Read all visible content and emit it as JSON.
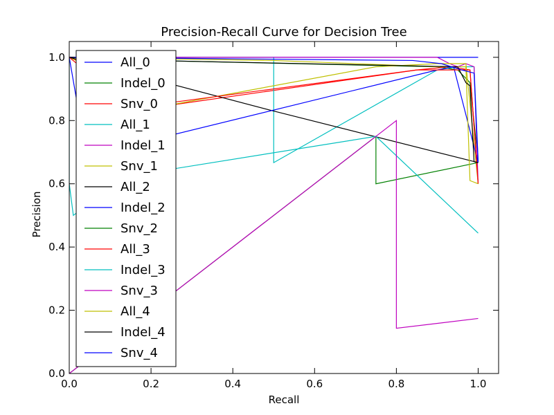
{
  "chart_data": {
    "type": "line",
    "title": "Precision-Recall Curve for Decision Tree",
    "xlabel": "Recall",
    "ylabel": "Precision",
    "xlim": [
      0.0,
      1.05
    ],
    "ylim": [
      0.0,
      1.05
    ],
    "xticks": [
      "0.0",
      "0.2",
      "0.4",
      "0.6",
      "0.8",
      "1.0"
    ],
    "yticks": [
      "0.0",
      "0.2",
      "0.4",
      "0.6",
      "0.8",
      "1.0"
    ],
    "legend_position": "left",
    "series": [
      {
        "name": "All_0",
        "color": "#0000ff",
        "x": [
          0.0,
          0.0,
          0.9,
          0.92,
          1.0
        ],
        "y": [
          1.0,
          1.0,
          1.0,
          1.0,
          1.0
        ]
      },
      {
        "name": "Indel_0",
        "color": "#008000",
        "x": [
          0.0,
          0.0,
          0.2,
          0.9,
          0.95,
          0.98,
          1.0
        ],
        "y": [
          1.0,
          1.0,
          0.99,
          0.97,
          0.96,
          0.92,
          0.67
        ]
      },
      {
        "name": "Snv_0",
        "color": "#ff0000",
        "x": [
          0.0,
          0.02,
          0.2,
          0.85,
          0.93,
          0.98,
          1.0
        ],
        "y": [
          1.0,
          0.99,
          0.84,
          0.96,
          0.97,
          0.96,
          0.6
        ]
      },
      {
        "name": "All_1",
        "color": "#00bfbf",
        "x": [
          0.0,
          0.0,
          0.5,
          0.5,
          0.9,
          0.95,
          0.99,
          1.0
        ],
        "y": [
          1.0,
          1.0,
          1.0,
          0.667,
          0.96,
          0.97,
          0.97,
          0.67
        ]
      },
      {
        "name": "Indel_1",
        "color": "#bf00bf",
        "x": [
          0.0,
          0.0,
          0.9,
          0.93,
          0.95,
          0.97,
          0.99,
          1.0
        ],
        "y": [
          1.0,
          1.0,
          1.0,
          0.98,
          0.97,
          0.98,
          0.97,
          0.6
        ]
      },
      {
        "name": "Snv_1",
        "color": "#bfbf00",
        "x": [
          0.0,
          0.0,
          0.25,
          0.75,
          0.9,
          0.97,
          1.0
        ],
        "y": [
          1.0,
          1.0,
          0.85,
          0.97,
          0.98,
          0.98,
          0.6
        ]
      },
      {
        "name": "All_2",
        "color": "#000000",
        "x": [
          0.0,
          0.0,
          0.5,
          1.0
        ],
        "y": [
          1.0,
          1.0,
          0.83,
          0.667
        ]
      },
      {
        "name": "Indel_2",
        "color": "#0000ff",
        "x": [
          0.0,
          0.02,
          0.08,
          0.9,
          0.94,
          1.0
        ],
        "y": [
          1.0,
          0.85,
          0.7,
          0.96,
          0.97,
          0.667
        ]
      },
      {
        "name": "Snv_2",
        "color": "#008000",
        "x": [
          0.0,
          0.75,
          0.75,
          0.75,
          1.0
        ],
        "y": [
          0.0,
          0.75,
          0.75,
          0.6,
          0.667
        ]
      },
      {
        "name": "All_3",
        "color": "#ff0000",
        "x": [
          0.0,
          0.15,
          0.85,
          0.98,
          1.0
        ],
        "y": [
          1.0,
          0.84,
          0.96,
          0.96,
          0.6
        ]
      },
      {
        "name": "Indel_3",
        "color": "#00bfbf",
        "x": [
          0.0,
          0.0,
          0.01,
          0.02,
          0.22,
          0.75,
          1.0
        ],
        "y": [
          1.0,
          0.6,
          0.5,
          0.51,
          0.64,
          0.75,
          0.444
        ]
      },
      {
        "name": "Snv_3",
        "color": "#bf00bf",
        "x": [
          0.0,
          0.8,
          0.8,
          0.8,
          1.0
        ],
        "y": [
          0.0,
          0.8,
          0.8,
          0.143,
          0.174
        ]
      },
      {
        "name": "All_4",
        "color": "#bfbf00",
        "x": [
          0.0,
          0.0,
          0.5,
          0.9,
          0.97,
          0.98,
          1.0
        ],
        "y": [
          1.0,
          1.0,
          0.99,
          0.97,
          0.97,
          0.61,
          0.6
        ]
      },
      {
        "name": "Indel_4",
        "color": "#000000",
        "x": [
          0.0,
          0.0,
          0.2,
          0.95,
          0.97,
          0.98,
          0.99,
          1.0
        ],
        "y": [
          1.0,
          1.0,
          0.99,
          0.97,
          0.92,
          0.91,
          0.67,
          0.667
        ]
      },
      {
        "name": "Snv_4",
        "color": "#0000ff",
        "x": [
          0.0,
          0.0,
          0.84,
          0.91,
          0.96,
          0.99,
          1.0
        ],
        "y": [
          1.0,
          1.0,
          0.99,
          0.98,
          0.96,
          0.95,
          0.67
        ]
      }
    ]
  }
}
